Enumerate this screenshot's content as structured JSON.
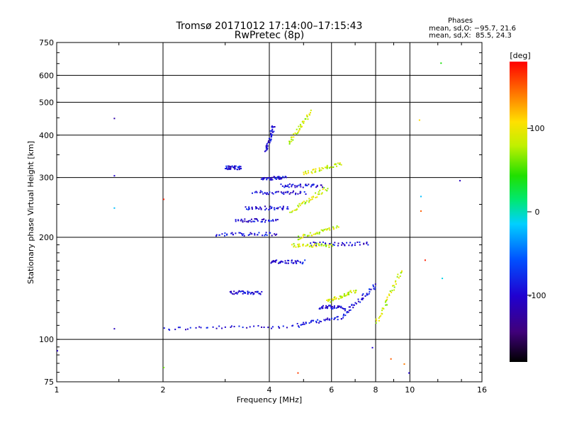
{
  "chart_data": {
    "type": "scatter",
    "title": "Tromsø 20171012 17:14:00–17:15:43",
    "subtitle": "RwPretec (8p)",
    "xlabel": "Frequency [MHz]",
    "ylabel": "Stationary phase Virtual Height [km]",
    "x_scale": "log",
    "y_scale": "log",
    "xlim": [
      1,
      16
    ],
    "ylim": [
      75,
      750
    ],
    "x_ticks": [
      1,
      2,
      4,
      6,
      8,
      10,
      16
    ],
    "y_ticks": [
      75,
      100,
      200,
      300,
      400,
      500,
      600,
      750
    ],
    "grid": true,
    "phase_info": {
      "title": "Phases",
      "line_o": "mean, sd,O: −95.7, 21.6",
      "line_x": "mean, sd,X:  85.5, 24.3"
    },
    "colorbar": {
      "label": "[deg]",
      "range": [
        -180,
        180
      ],
      "ticks": [
        100,
        0,
        -100
      ],
      "colormap": "rainbow (black → purple → blue → cyan → green → yellow → red)"
    },
    "series": [
      {
        "name": "O-mode traces",
        "color_hint": "#2030d0",
        "phase": -95,
        "segments": [
          {
            "x": [
              2.0,
              4.8
            ],
            "y": [
              108,
              110
            ]
          },
          {
            "x": [
              4.8,
              6.5
            ],
            "y": [
              111,
              117
            ]
          },
          {
            "x": [
              6.5,
              8.0
            ],
            "y": [
              120,
              145
            ]
          },
          {
            "x": [
              3.1,
              3.8
            ],
            "y": [
              138,
              138
            ]
          },
          {
            "x": [
              4.0,
              5.0
            ],
            "y": [
              170,
              170
            ]
          },
          {
            "x": [
              2.8,
              4.2
            ],
            "y": [
              205,
              205
            ]
          },
          {
            "x": [
              3.2,
              4.2
            ],
            "y": [
              225,
              225
            ]
          },
          {
            "x": [
              3.4,
              4.5
            ],
            "y": [
              245,
              245
            ]
          },
          {
            "x": [
              3.6,
              5.0
            ],
            "y": [
              272,
              272
            ]
          },
          {
            "x": [
              3.8,
              4.4
            ],
            "y": [
              300,
              300
            ]
          },
          {
            "x": [
              3.0,
              3.3
            ],
            "y": [
              322,
              322
            ]
          },
          {
            "x": [
              3.9,
              4.1
            ],
            "y": [
              360,
              430
            ]
          },
          {
            "x": [
              4.3,
              5.6
            ],
            "y": [
              285,
              285
            ]
          },
          {
            "x": [
              5.2,
              7.6
            ],
            "y": [
              192,
              192
            ]
          },
          {
            "x": [
              5.5,
              6.5
            ],
            "y": [
              125,
              125
            ]
          }
        ]
      },
      {
        "name": "X-mode traces",
        "color_hint": "#e0e020",
        "phase": 85,
        "segments": [
          {
            "x": [
              4.6,
              6.0
            ],
            "y": [
              190,
              190
            ]
          },
          {
            "x": [
              4.8,
              6.2
            ],
            "y": [
              200,
              215
            ]
          },
          {
            "x": [
              4.6,
              5.8
            ],
            "y": [
              240,
              280
            ]
          },
          {
            "x": [
              5.0,
              6.3
            ],
            "y": [
              310,
              330
            ]
          },
          {
            "x": [
              8.0,
              9.4
            ],
            "y": [
              112,
              160
            ]
          },
          {
            "x": [
              5.8,
              7.0
            ],
            "y": [
              130,
              140
            ]
          },
          {
            "x": [
              4.5,
              5.2
            ],
            "y": [
              380,
              470
            ]
          }
        ]
      },
      {
        "name": "Scattered points",
        "points": [
          {
            "x": 1.45,
            "y": 450,
            "phase": -120
          },
          {
            "x": 1.45,
            "y": 305,
            "phase": -100
          },
          {
            "x": 1.45,
            "y": 245,
            "phase": -20
          },
          {
            "x": 1.45,
            "y": 108,
            "phase": -110
          },
          {
            "x": 1.0,
            "y": 93,
            "phase": -110
          },
          {
            "x": 2.0,
            "y": 260,
            "phase": 170
          },
          {
            "x": 2.0,
            "y": 83,
            "phase": 60
          },
          {
            "x": 10.6,
            "y": 445,
            "phase": 110
          },
          {
            "x": 12.2,
            "y": 655,
            "phase": 40
          },
          {
            "x": 10.7,
            "y": 265,
            "phase": -20
          },
          {
            "x": 10.7,
            "y": 240,
            "phase": 150
          },
          {
            "x": 11.0,
            "y": 172,
            "phase": 170
          },
          {
            "x": 12.3,
            "y": 152,
            "phase": -10
          },
          {
            "x": 13.8,
            "y": 295,
            "phase": -110
          },
          {
            "x": 6.3,
            "y": 330,
            "phase": 60
          },
          {
            "x": 7.8,
            "y": 95,
            "phase": -100
          },
          {
            "x": 8.8,
            "y": 88,
            "phase": 150
          },
          {
            "x": 9.6,
            "y": 85,
            "phase": 140
          },
          {
            "x": 9.9,
            "y": 80,
            "phase": -100
          },
          {
            "x": 4.8,
            "y": 80,
            "phase": 160
          }
        ]
      }
    ]
  }
}
